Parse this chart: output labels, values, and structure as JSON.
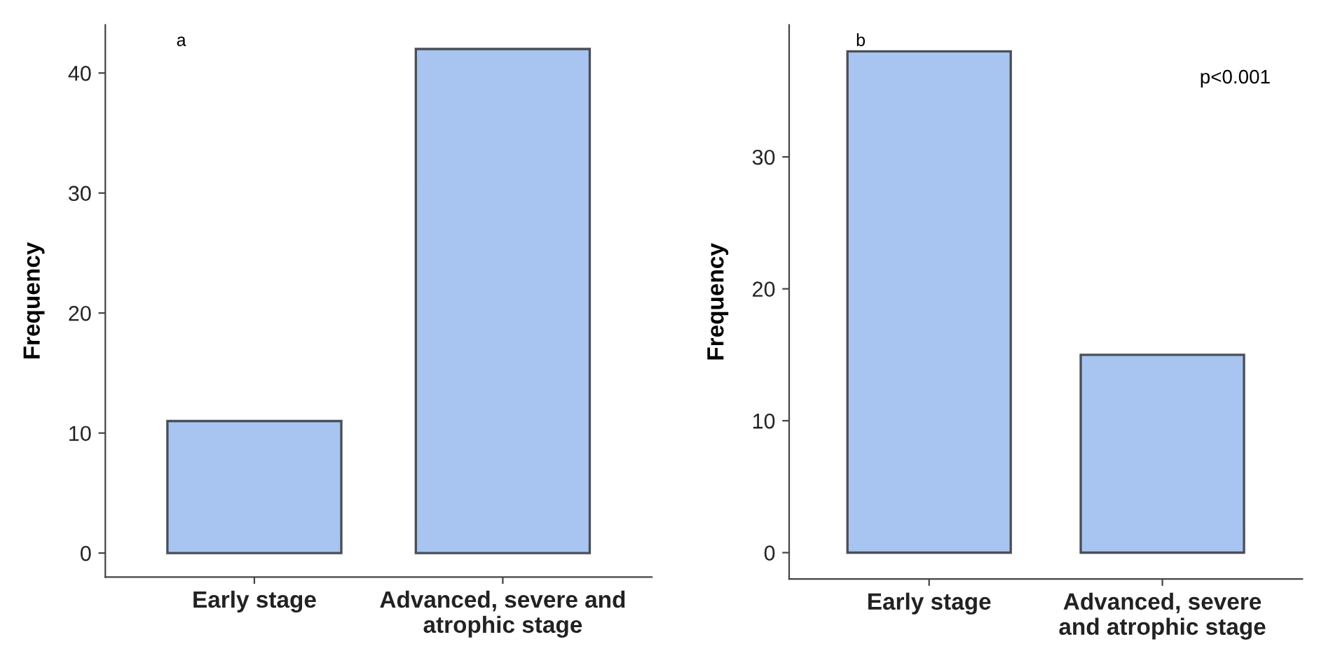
{
  "chart_data": [
    {
      "type": "bar",
      "ylabel": "Frequency",
      "categories": [
        "Early stage",
        "Advanced, severe and\natrophic stage"
      ],
      "values": [
        11,
        42
      ],
      "color": "#a7c5f0",
      "ylim": [
        -2,
        44
      ],
      "yticks": [
        0,
        10,
        20,
        30,
        40
      ],
      "grid": false,
      "annotations": [
        "a"
      ]
    },
    {
      "type": "bar",
      "ylabel": "Frequency",
      "categories": [
        "Early stage",
        "Advanced, severe\nand atrophic stage"
      ],
      "values": [
        38,
        15
      ],
      "color": "#a7c5f0",
      "ylim": [
        -2,
        40
      ],
      "yticks": [
        0,
        10,
        20,
        30
      ],
      "grid": false,
      "annotations": [
        "b",
        "p<0.001"
      ]
    }
  ]
}
